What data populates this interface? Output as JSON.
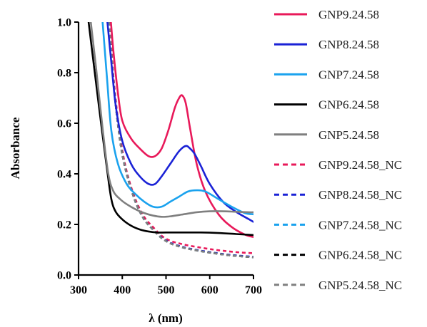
{
  "chart_data": {
    "type": "line",
    "xlabel": "λ (nm)",
    "ylabel": "Absorbance",
    "xlim": [
      300,
      700
    ],
    "ylim": [
      0.0,
      1.0
    ],
    "x_ticks": [
      300,
      400,
      500,
      600,
      700
    ],
    "y_ticks": [
      0.0,
      0.2,
      0.4,
      0.6,
      0.8,
      1.0
    ],
    "x_tick_labels": [
      "300",
      "400",
      "500",
      "600",
      "700"
    ],
    "y_tick_labels": [
      "0.0",
      "0.2",
      "0.4",
      "0.6",
      "0.8",
      "1.0"
    ],
    "grid": false,
    "legend_position": "right",
    "series": [
      {
        "name": "GNP9.24.58",
        "color": "#e8195a",
        "dash": "solid",
        "x": [
          374,
          380,
          390,
          400,
          420,
          440,
          460,
          475,
          490,
          505,
          520,
          530,
          537,
          545,
          555,
          570,
          590,
          620,
          650,
          680,
          700
        ],
        "y": [
          1.0,
          0.88,
          0.72,
          0.61,
          0.54,
          0.5,
          0.47,
          0.47,
          0.5,
          0.57,
          0.66,
          0.7,
          0.71,
          0.68,
          0.58,
          0.44,
          0.33,
          0.24,
          0.19,
          0.16,
          0.15
        ]
      },
      {
        "name": "GNP8.24.58",
        "color": "#1a22d6",
        "dash": "solid",
        "x": [
          366,
          375,
          385,
          400,
          420,
          440,
          460,
          475,
          490,
          510,
          530,
          545,
          555,
          565,
          580,
          600,
          630,
          660,
          690,
          700
        ],
        "y": [
          1.0,
          0.84,
          0.67,
          0.53,
          0.44,
          0.39,
          0.36,
          0.36,
          0.39,
          0.44,
          0.49,
          0.51,
          0.5,
          0.48,
          0.43,
          0.36,
          0.29,
          0.25,
          0.22,
          0.21
        ]
      },
      {
        "name": "GNP7.24.58",
        "color": "#1aa2ee",
        "dash": "solid",
        "x": [
          355,
          365,
          375,
          390,
          410,
          430,
          450,
          470,
          490,
          510,
          530,
          550,
          570,
          590,
          620,
          650,
          680,
          700
        ],
        "y": [
          1.0,
          0.78,
          0.57,
          0.44,
          0.36,
          0.32,
          0.29,
          0.27,
          0.27,
          0.29,
          0.31,
          0.33,
          0.335,
          0.33,
          0.3,
          0.27,
          0.245,
          0.24
        ]
      },
      {
        "name": "GNP6.24.58",
        "color": "#000000",
        "dash": "solid",
        "x": [
          323,
          335,
          350,
          365,
          375,
          385,
          400,
          420,
          440,
          460,
          480,
          500,
          540,
          580,
          620,
          660,
          700
        ],
        "y": [
          1.0,
          0.83,
          0.62,
          0.42,
          0.3,
          0.25,
          0.22,
          0.195,
          0.18,
          0.172,
          0.168,
          0.168,
          0.168,
          0.168,
          0.166,
          0.162,
          0.158
        ]
      },
      {
        "name": "GNP5.24.58",
        "color": "#7f7f7f",
        "dash": "solid",
        "x": [
          328,
          340,
          355,
          368,
          380,
          395,
          410,
          430,
          450,
          470,
          490,
          510,
          540,
          570,
          600,
          630,
          660,
          690,
          700
        ],
        "y": [
          1.0,
          0.82,
          0.58,
          0.4,
          0.33,
          0.3,
          0.28,
          0.26,
          0.245,
          0.235,
          0.23,
          0.232,
          0.24,
          0.248,
          0.252,
          0.252,
          0.25,
          0.248,
          0.248
        ]
      },
      {
        "name": "GNP9.24.58_NC",
        "color": "#e8195a",
        "dash": "dashed",
        "x": [
          372,
          380,
          395,
          410,
          430,
          450,
          470,
          490,
          510,
          530,
          550,
          580,
          610,
          640,
          670,
          700
        ],
        "y": [
          1.0,
          0.78,
          0.55,
          0.41,
          0.3,
          0.23,
          0.19,
          0.155,
          0.135,
          0.125,
          0.117,
          0.108,
          0.1,
          0.094,
          0.089,
          0.086
        ]
      },
      {
        "name": "GNP8.24.58_NC",
        "color": "#1a22d6",
        "dash": "dashed",
        "x": [
          371,
          380,
          395,
          410,
          430,
          450,
          470,
          490,
          510,
          530,
          550,
          580,
          610,
          640,
          670,
          700
        ],
        "y": [
          1.0,
          0.76,
          0.53,
          0.4,
          0.29,
          0.22,
          0.18,
          0.148,
          0.127,
          0.115,
          0.106,
          0.096,
          0.088,
          0.081,
          0.076,
          0.072
        ]
      },
      {
        "name": "GNP7.24.58_NC",
        "color": "#1aa2ee",
        "dash": "dashed",
        "x": [
          371,
          380,
          395,
          410,
          430,
          450,
          470,
          490,
          510,
          530,
          550,
          580,
          610,
          640,
          670,
          700
        ],
        "y": [
          1.0,
          0.76,
          0.53,
          0.4,
          0.29,
          0.22,
          0.18,
          0.146,
          0.125,
          0.113,
          0.104,
          0.094,
          0.086,
          0.079,
          0.074,
          0.07
        ]
      },
      {
        "name": "GNP6.24.58_NC",
        "color": "#000000",
        "dash": "dashed",
        "x": [
          371,
          380,
          395,
          410,
          430,
          450,
          470,
          490,
          510,
          530,
          550,
          580,
          610,
          640,
          670,
          700
        ],
        "y": [
          1.0,
          0.76,
          0.53,
          0.4,
          0.29,
          0.22,
          0.18,
          0.146,
          0.125,
          0.113,
          0.104,
          0.094,
          0.086,
          0.079,
          0.074,
          0.07
        ]
      },
      {
        "name": "GNP5.24.58_NC",
        "color": "#7f7f7f",
        "dash": "dashed",
        "x": [
          371,
          380,
          395,
          410,
          430,
          450,
          470,
          490,
          510,
          530,
          550,
          580,
          610,
          640,
          670,
          700
        ],
        "y": [
          1.0,
          0.76,
          0.53,
          0.4,
          0.29,
          0.22,
          0.18,
          0.146,
          0.125,
          0.113,
          0.104,
          0.094,
          0.086,
          0.079,
          0.074,
          0.07
        ]
      }
    ]
  }
}
